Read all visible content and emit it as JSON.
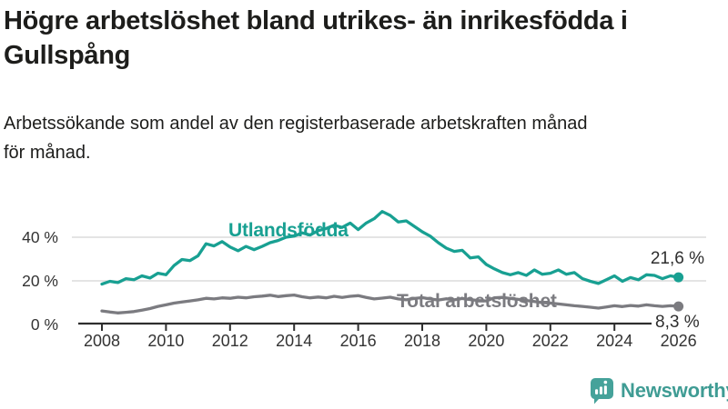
{
  "header": {
    "title": "Högre arbetslöshet bland utrikes- än inrikesfödda i Gullspång",
    "subtitle": "Arbetssökande som andel av den registerbaserade arbetskraften månad för månad."
  },
  "chart_data": {
    "type": "line",
    "x_min": 2008,
    "x_tick_labels": [
      "2008",
      "2010",
      "2012",
      "2014",
      "2016",
      "2018",
      "2020",
      "2022",
      "2024",
      "2026"
    ],
    "y_ticks": [
      {
        "value": 0,
        "label": "0 %"
      },
      {
        "value": 20,
        "label": "20 %"
      },
      {
        "value": 40,
        "label": "40 %"
      }
    ],
    "ylim": [
      0,
      55
    ],
    "grid": "horizontal",
    "legend_position": "inline-labels",
    "series": [
      {
        "name": "Utlandsfödda",
        "color": "#18a092",
        "x_start": 2008,
        "x_step": 0.25,
        "end_value": 21.6,
        "end_label": "21,6 %",
        "values": [
          18.5,
          19.8,
          19.2,
          21.0,
          20.5,
          22.3,
          21.3,
          23.5,
          22.8,
          27.0,
          29.8,
          29.3,
          31.5,
          37.0,
          36.0,
          38.0,
          35.5,
          33.8,
          35.8,
          34.3,
          35.8,
          37.5,
          38.5,
          40.0,
          40.5,
          42.0,
          41.0,
          43.0,
          44.0,
          45.5,
          44.5,
          46.5,
          43.5,
          46.5,
          48.5,
          51.8,
          50.0,
          47.0,
          47.5,
          45.0,
          42.5,
          40.5,
          37.5,
          35.0,
          33.5,
          34.0,
          30.5,
          31.0,
          27.5,
          25.5,
          23.8,
          22.8,
          23.8,
          22.5,
          25.0,
          23.0,
          23.5,
          25.0,
          23.0,
          23.8,
          21.0,
          19.8,
          18.8,
          20.5,
          22.3,
          19.8,
          21.5,
          20.5,
          22.8,
          22.5,
          21.0,
          22.3,
          21.6
        ]
      },
      {
        "name": "Total arbetslöshet",
        "color": "#7b7b80",
        "x_start": 2008,
        "x_step": 0.25,
        "end_value": 8.3,
        "end_label": "8,3 %",
        "values": [
          6.2,
          5.7,
          5.3,
          5.6,
          5.9,
          6.6,
          7.3,
          8.3,
          9.0,
          9.8,
          10.3,
          10.8,
          11.3,
          12.0,
          11.7,
          12.2,
          12.0,
          12.5,
          12.2,
          12.7,
          13.0,
          13.4,
          12.8,
          13.2,
          13.5,
          12.7,
          12.2,
          12.6,
          12.2,
          12.9,
          12.4,
          12.9,
          13.2,
          12.4,
          11.7,
          12.1,
          12.5,
          11.7,
          11.3,
          11.9,
          12.3,
          11.7,
          11.2,
          11.8,
          11.3,
          11.9,
          11.4,
          11.0,
          10.8,
          12.2,
          12.4,
          11.9,
          11.5,
          11.0,
          10.5,
          10.0,
          9.8,
          9.4,
          9.0,
          8.6,
          8.3,
          7.9,
          7.5,
          8.0,
          8.6,
          8.2,
          8.7,
          8.4,
          9.0,
          8.6,
          8.3,
          8.6,
          8.3
        ]
      }
    ],
    "style": {
      "grid_color": "#dcdcdc",
      "axis_color": "#2e2e2e",
      "tick_text_color": "#333333"
    }
  },
  "footer": {
    "brand": "Newsworthy"
  }
}
